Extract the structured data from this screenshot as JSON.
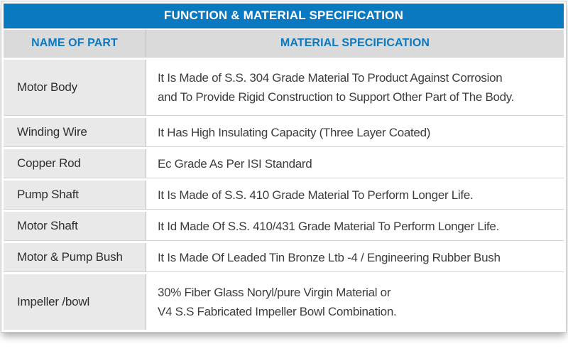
{
  "header": {
    "title": "FUNCTION & MATERIAL SPECIFICATION"
  },
  "columns": {
    "part_label": "NAME OF PART",
    "spec_label": "MATERIAL SPECIFICATION"
  },
  "rows": [
    {
      "part": "Motor Body",
      "spec": "It Is Made of S.S. 304 Grade Material To Product Against Corrosion\nand To Provide Rigid Construction to Support Other Part of The Body."
    },
    {
      "part": "Winding Wire",
      "spec": "It Has High Insulating Capacity (Three Layer Coated)"
    },
    {
      "part": "Copper Rod",
      "spec": "Ec Grade As Per ISI Standard"
    },
    {
      "part": "Pump Shaft",
      "spec": "It Is Made of S.S. 410 Grade Material To Perform Longer Life."
    },
    {
      "part": "Motor Shaft",
      "spec": "It Id Made Of S.S. 410/431 Grade Material To Perform Longer Life."
    },
    {
      "part": "Motor & Pump Bush",
      "spec": "It Is Made Of Leaded Tin Bronze Ltb -4 / Engineering Rubber Bush"
    },
    {
      "part": "Impeller /bowl",
      "spec": "30% Fiber Glass Noryl/pure Virgin Material or\nV4 S.S Fabricated Impeller Bowl Combination."
    }
  ],
  "colors": {
    "accent_blue": "#0b79c0",
    "title_text": "#ffffff",
    "column_header_bg": "#dadada",
    "part_cell_bg": "#e9e9e9",
    "spec_cell_bg": "#ffffff",
    "divider_gray": "#bdbdbd",
    "body_text": "#3d3d3d"
  }
}
